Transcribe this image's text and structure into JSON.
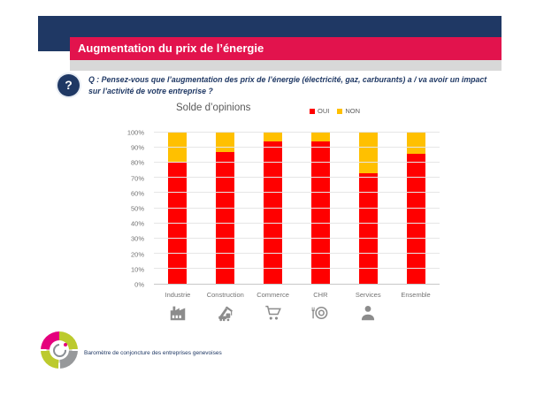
{
  "header": {
    "title": "Augmentation du prix de l’énergie"
  },
  "question": {
    "glyph": "?",
    "text": "Q : Pensez-vous que l’augmentation des prix de l’énergie (électricité, gaz, carburants) a / va avoir un impact sur l’activité de votre entreprise ?"
  },
  "chart_data": {
    "type": "bar",
    "stacked": true,
    "title": "Solde d’opinions",
    "categories": [
      "Industrie",
      "Construction",
      "Commerce",
      "CHR",
      "Services",
      "Ensemble"
    ],
    "series": [
      {
        "name": "OUI",
        "color": "#FF0000",
        "values": [
          80,
          87,
          94,
          94,
          73,
          86
        ]
      },
      {
        "name": "NON",
        "color": "#FFC000",
        "values": [
          20,
          13,
          6,
          6,
          27,
          14
        ]
      }
    ],
    "unit": "%",
    "ylim": [
      0,
      100
    ],
    "ytick_step": 10,
    "ytick_suffix": "%",
    "grid": true,
    "legend_position": "top-right",
    "category_icons": [
      "factory-icon",
      "crane-icon",
      "shopping-cart-icon",
      "restaurant-icon",
      "person-icon",
      null
    ]
  },
  "footer": {
    "text": "Baromètre de conjoncture des entreprises genevoises"
  },
  "colors": {
    "navy": "#1F3864",
    "crimson": "#E2134D",
    "gray_strip": "#D8D8D8",
    "bar_oui": "#FF0000",
    "bar_non": "#FFC000",
    "chart_text_gray": "#595959",
    "axis_text_gray": "#737373",
    "icon_gray": "#8C8C8C",
    "logo_pink": "#E5007D",
    "logo_lime": "#BCCA2E",
    "logo_gray": "#97999B"
  }
}
